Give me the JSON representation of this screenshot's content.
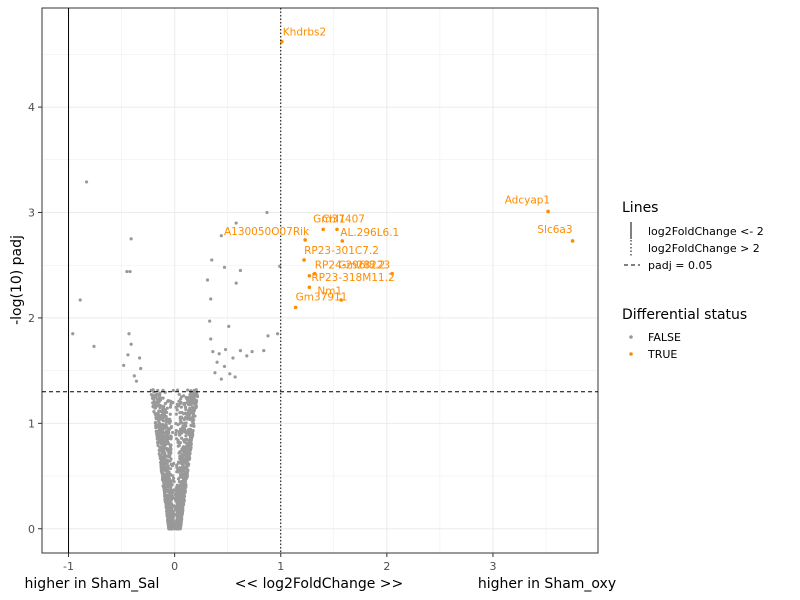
{
  "chart_data": {
    "type": "scatter",
    "title": "",
    "xlabel": "<< log2FoldChange >>",
    "xlabel_left": "higher in Sham_Sal",
    "xlabel_right": "higher in Sham_oxy",
    "ylabel": "-log(10) padj",
    "xlim": [
      -1.25,
      3.99
    ],
    "ylim": [
      -0.23,
      4.94
    ],
    "xticks": [
      -1,
      0,
      1,
      2,
      3
    ],
    "yticks": [
      0,
      1,
      2,
      3,
      4
    ],
    "reference_lines": [
      {
        "name": "log2FoldChange <- 2",
        "axis": "x",
        "value": -1,
        "style": "solid"
      },
      {
        "name": "log2FoldChange > 2",
        "axis": "x",
        "value": 1,
        "style": "dotted"
      },
      {
        "name": "padj = 0.05",
        "axis": "y",
        "value": 1.3,
        "style": "dashed"
      }
    ],
    "colors": {
      "FALSE": "#999999",
      "TRUE": "#ff8c00"
    },
    "significant_points": [
      {
        "label": "Khdrbs2",
        "x": 1.01,
        "y": 4.62
      },
      {
        "label": "Adcyap1",
        "x": 3.52,
        "y": 3.01
      },
      {
        "label": "Slc6a3",
        "x": 3.75,
        "y": 2.73
      },
      {
        "label": "Gm37407",
        "x": 1.4,
        "y": 2.84
      },
      {
        "label": "Chl1",
        "x": 1.53,
        "y": 2.84
      },
      {
        "label": "A130050O07Rik",
        "x": 1.23,
        "y": 2.74
      },
      {
        "label": "AL.296L6.1",
        "x": 1.58,
        "y": 2.73
      },
      {
        "label": "RP23-301C7.2",
        "x": 1.22,
        "y": 2.55
      },
      {
        "label": "RP24-296I8.2",
        "x": 1.32,
        "y": 2.42
      },
      {
        "label": "Gm28223",
        "x": 2.05,
        "y": 2.42
      },
      {
        "label": "RP23-318M11.2",
        "x": 1.27,
        "y": 2.4
      },
      {
        "label": "Nm1",
        "x": 1.27,
        "y": 2.29
      },
      {
        "label": "Gm37911",
        "x": 1.14,
        "y": 2.1
      },
      {
        "label": "",
        "x": 1.57,
        "y": 2.17
      }
    ],
    "nonsignificant_outliers": [
      {
        "x": -0.83,
        "y": 3.29
      },
      {
        "x": -0.89,
        "y": 2.17
      },
      {
        "x": -0.76,
        "y": 1.73
      },
      {
        "x": -0.96,
        "y": 1.85
      },
      {
        "x": -0.41,
        "y": 2.75
      },
      {
        "x": -0.45,
        "y": 2.44
      },
      {
        "x": -0.42,
        "y": 2.44
      },
      {
        "x": -0.43,
        "y": 1.85
      },
      {
        "x": -0.41,
        "y": 1.75
      },
      {
        "x": -0.44,
        "y": 1.65
      },
      {
        "x": -0.48,
        "y": 1.55
      },
      {
        "x": -0.38,
        "y": 1.45
      },
      {
        "x": -0.33,
        "y": 1.62
      },
      {
        "x": -0.32,
        "y": 1.52
      },
      {
        "x": -0.36,
        "y": 1.4
      },
      {
        "x": 0.58,
        "y": 2.9
      },
      {
        "x": 0.87,
        "y": 3.0
      },
      {
        "x": 0.35,
        "y": 2.55
      },
      {
        "x": 0.44,
        "y": 2.78
      },
      {
        "x": 0.47,
        "y": 2.48
      },
      {
        "x": 0.31,
        "y": 2.36
      },
      {
        "x": 0.34,
        "y": 2.18
      },
      {
        "x": 0.62,
        "y": 2.45
      },
      {
        "x": 0.58,
        "y": 2.33
      },
      {
        "x": 0.99,
        "y": 2.49
      },
      {
        "x": 0.33,
        "y": 1.97
      },
      {
        "x": 0.34,
        "y": 1.8
      },
      {
        "x": 0.51,
        "y": 1.92
      },
      {
        "x": 0.88,
        "y": 1.83
      },
      {
        "x": 0.97,
        "y": 1.85
      },
      {
        "x": 0.84,
        "y": 1.69
      },
      {
        "x": 0.36,
        "y": 1.68
      },
      {
        "x": 0.42,
        "y": 1.66
      },
      {
        "x": 0.48,
        "y": 1.7
      },
      {
        "x": 0.55,
        "y": 1.62
      },
      {
        "x": 0.62,
        "y": 1.69
      },
      {
        "x": 0.68,
        "y": 1.64
      },
      {
        "x": 0.73,
        "y": 1.68
      },
      {
        "x": 0.4,
        "y": 1.58
      },
      {
        "x": 0.47,
        "y": 1.54
      },
      {
        "x": 0.52,
        "y": 1.47
      },
      {
        "x": 0.57,
        "y": 1.44
      },
      {
        "x": 0.44,
        "y": 1.42
      },
      {
        "x": 0.38,
        "y": 1.48
      }
    ],
    "null_cloud": {
      "description": "dense non-significant cloud around x = 0",
      "color": "#999999"
    }
  },
  "legend": {
    "lines_title": "Lines",
    "lines": [
      {
        "label": "log2FoldChange <- 2",
        "style": "solid"
      },
      {
        "label": "log2FoldChange > 2",
        "style": "dotted"
      },
      {
        "label": "padj = 0.05",
        "style": "dashed"
      }
    ],
    "status_title": "Differential status",
    "status": [
      {
        "label": "FALSE",
        "color": "#999999"
      },
      {
        "label": "TRUE",
        "color": "#ff8c00"
      }
    ]
  }
}
